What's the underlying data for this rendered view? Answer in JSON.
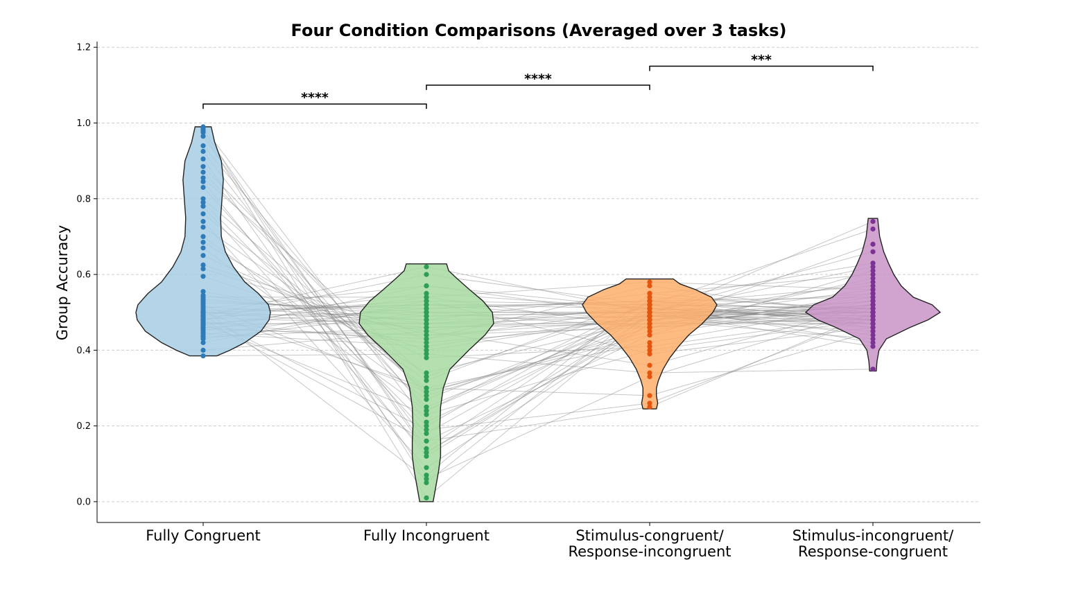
{
  "chart_data": {
    "type": "violin",
    "title": "Four Condition Comparisons (Averaged over 3 tasks)",
    "xlabel": "",
    "ylabel": "Group Accuracy",
    "ylim": [
      -0.055,
      1.215
    ],
    "yticks": [
      0.0,
      0.2,
      0.4,
      0.6,
      0.8,
      1.0,
      1.2
    ],
    "ytick_labels": [
      "0.0",
      "0.2",
      "0.4",
      "0.6",
      "0.8",
      "1.0",
      "1.2"
    ],
    "grid": "horizontal dashed",
    "categories": [
      [
        "Fully Congruent"
      ],
      [
        "Fully Incongruent"
      ],
      [
        "Stimulus-congruent/",
        "Response-incongruent"
      ],
      [
        "Stimulus-incongruent/",
        "Response-congruent"
      ]
    ],
    "colors": {
      "fill": [
        "#a6cee3",
        "#a6dba0",
        "#fdae6b",
        "#c994c7"
      ],
      "points": [
        "#2f7ab8",
        "#2f9e55",
        "#e6550d",
        "#7b3294"
      ],
      "lines": "#808080",
      "violin_edge": "#222222"
    },
    "violins": [
      {
        "min": 0.385,
        "max": 0.99,
        "shape": [
          [
            0.385,
            0.2
          ],
          [
            0.4,
            0.4
          ],
          [
            0.42,
            0.62
          ],
          [
            0.45,
            0.86
          ],
          [
            0.48,
            0.98
          ],
          [
            0.5,
            1.0
          ],
          [
            0.52,
            0.97
          ],
          [
            0.55,
            0.82
          ],
          [
            0.58,
            0.62
          ],
          [
            0.62,
            0.45
          ],
          [
            0.66,
            0.33
          ],
          [
            0.7,
            0.27
          ],
          [
            0.75,
            0.26
          ],
          [
            0.8,
            0.28
          ],
          [
            0.85,
            0.3
          ],
          [
            0.9,
            0.27
          ],
          [
            0.95,
            0.17
          ],
          [
            0.99,
            0.12
          ]
        ]
      },
      {
        "min": 0.0,
        "max": 0.628,
        "shape": [
          [
            0.0,
            0.1
          ],
          [
            0.03,
            0.13
          ],
          [
            0.08,
            0.18
          ],
          [
            0.12,
            0.21
          ],
          [
            0.16,
            0.21
          ],
          [
            0.2,
            0.2
          ],
          [
            0.25,
            0.21
          ],
          [
            0.3,
            0.25
          ],
          [
            0.35,
            0.35
          ],
          [
            0.4,
            0.63
          ],
          [
            0.44,
            0.87
          ],
          [
            0.47,
            1.0
          ],
          [
            0.5,
            0.98
          ],
          [
            0.53,
            0.84
          ],
          [
            0.56,
            0.64
          ],
          [
            0.59,
            0.45
          ],
          [
            0.61,
            0.33
          ],
          [
            0.628,
            0.3
          ]
        ]
      },
      {
        "min": 0.245,
        "max": 0.588,
        "shape": [
          [
            0.245,
            0.1
          ],
          [
            0.26,
            0.12
          ],
          [
            0.28,
            0.1
          ],
          [
            0.3,
            0.1
          ],
          [
            0.32,
            0.13
          ],
          [
            0.35,
            0.2
          ],
          [
            0.38,
            0.3
          ],
          [
            0.41,
            0.43
          ],
          [
            0.44,
            0.58
          ],
          [
            0.47,
            0.78
          ],
          [
            0.5,
            0.94
          ],
          [
            0.52,
            1.0
          ],
          [
            0.54,
            0.92
          ],
          [
            0.56,
            0.68
          ],
          [
            0.575,
            0.45
          ],
          [
            0.588,
            0.35
          ]
        ]
      },
      {
        "min": 0.345,
        "max": 0.748,
        "shape": [
          [
            0.345,
            0.05
          ],
          [
            0.37,
            0.06
          ],
          [
            0.4,
            0.09
          ],
          [
            0.43,
            0.2
          ],
          [
            0.46,
            0.55
          ],
          [
            0.48,
            0.82
          ],
          [
            0.5,
            1.0
          ],
          [
            0.52,
            0.88
          ],
          [
            0.54,
            0.6
          ],
          [
            0.57,
            0.42
          ],
          [
            0.6,
            0.31
          ],
          [
            0.63,
            0.23
          ],
          [
            0.66,
            0.16
          ],
          [
            0.7,
            0.1
          ],
          [
            0.748,
            0.07
          ]
        ]
      }
    ],
    "significance": [
      {
        "from": 0,
        "to": 1,
        "y": 1.05,
        "label": "****"
      },
      {
        "from": 1,
        "to": 2,
        "y": 1.1,
        "label": "****"
      },
      {
        "from": 2,
        "to": 3,
        "y": 1.15,
        "label": "***"
      }
    ],
    "subjects": [
      [
        0.99,
        0.21,
        0.49,
        0.74
      ],
      [
        0.985,
        0.05,
        0.52,
        0.72
      ],
      [
        0.98,
        0.13,
        0.47,
        0.68
      ],
      [
        0.975,
        0.01,
        0.5,
        0.66
      ],
      [
        0.965,
        0.14,
        0.53,
        0.63
      ],
      [
        0.94,
        0.24,
        0.5,
        0.62
      ],
      [
        0.925,
        0.16,
        0.44,
        0.61
      ],
      [
        0.905,
        0.07,
        0.55,
        0.6
      ],
      [
        0.885,
        0.28,
        0.46,
        0.59
      ],
      [
        0.87,
        0.25,
        0.49,
        0.58
      ],
      [
        0.855,
        0.33,
        0.52,
        0.57
      ],
      [
        0.845,
        0.12,
        0.48,
        0.56
      ],
      [
        0.83,
        0.18,
        0.51,
        0.55
      ],
      [
        0.8,
        0.29,
        0.45,
        0.55
      ],
      [
        0.79,
        0.2,
        0.53,
        0.54
      ],
      [
        0.78,
        0.13,
        0.49,
        0.53
      ],
      [
        0.76,
        0.3,
        0.42,
        0.52
      ],
      [
        0.74,
        0.09,
        0.47,
        0.52
      ],
      [
        0.725,
        0.32,
        0.54,
        0.51
      ],
      [
        0.7,
        0.27,
        0.5,
        0.51
      ],
      [
        0.685,
        0.34,
        0.48,
        0.5
      ],
      [
        0.67,
        0.24,
        0.53,
        0.5
      ],
      [
        0.65,
        0.38,
        0.41,
        0.49
      ],
      [
        0.625,
        0.44,
        0.46,
        0.49
      ],
      [
        0.615,
        0.43,
        0.51,
        0.48
      ],
      [
        0.595,
        0.4,
        0.49,
        0.48
      ],
      [
        0.555,
        0.45,
        0.52,
        0.47
      ],
      [
        0.545,
        0.47,
        0.47,
        0.47
      ],
      [
        0.535,
        0.49,
        0.5,
        0.46
      ],
      [
        0.525,
        0.51,
        0.53,
        0.46
      ],
      [
        0.515,
        0.48,
        0.49,
        0.45
      ],
      [
        0.505,
        0.52,
        0.51,
        0.44
      ],
      [
        0.5,
        0.46,
        0.48,
        0.43
      ],
      [
        0.495,
        0.53,
        0.52,
        0.42
      ],
      [
        0.49,
        0.5,
        0.5,
        0.41
      ],
      [
        0.485,
        0.47,
        0.49,
        0.5
      ],
      [
        0.48,
        0.55,
        0.51,
        0.49
      ],
      [
        0.475,
        0.42,
        0.47,
        0.52
      ],
      [
        0.47,
        0.51,
        0.53,
        0.48
      ],
      [
        0.465,
        0.54,
        0.46,
        0.51
      ],
      [
        0.46,
        0.49,
        0.5,
        0.49
      ],
      [
        0.455,
        0.44,
        0.48,
        0.53
      ],
      [
        0.45,
        0.57,
        0.51,
        0.5
      ],
      [
        0.445,
        0.41,
        0.49,
        0.47
      ],
      [
        0.44,
        0.52,
        0.52,
        0.51
      ],
      [
        0.435,
        0.46,
        0.47,
        0.48
      ],
      [
        0.43,
        0.5,
        0.5,
        0.5
      ],
      [
        0.42,
        0.53,
        0.39,
        0.46
      ],
      [
        0.4,
        0.45,
        0.36,
        0.52
      ],
      [
        0.385,
        0.39,
        0.34,
        0.35
      ],
      [
        0.5,
        0.3,
        0.28,
        0.45
      ],
      [
        0.49,
        0.19,
        0.26,
        0.49
      ],
      [
        0.48,
        0.16,
        0.25,
        0.5
      ],
      [
        0.51,
        0.06,
        0.33,
        0.51
      ],
      [
        0.47,
        0.23,
        0.4,
        0.48
      ],
      [
        0.52,
        0.29,
        0.44,
        0.53
      ],
      [
        0.5,
        0.48,
        0.55,
        0.5
      ],
      [
        0.46,
        0.43,
        0.57,
        0.49
      ],
      [
        0.54,
        0.54,
        0.58,
        0.56
      ],
      [
        0.49,
        0.62,
        0.5,
        0.47
      ],
      [
        0.48,
        0.6,
        0.52,
        0.51
      ],
      [
        0.51,
        0.57,
        0.49,
        0.5
      ],
      [
        0.53,
        0.5,
        0.46,
        0.54
      ],
      [
        0.47,
        0.47,
        0.51,
        0.48
      ],
      [
        0.5,
        0.52,
        0.48,
        0.52
      ]
    ]
  }
}
